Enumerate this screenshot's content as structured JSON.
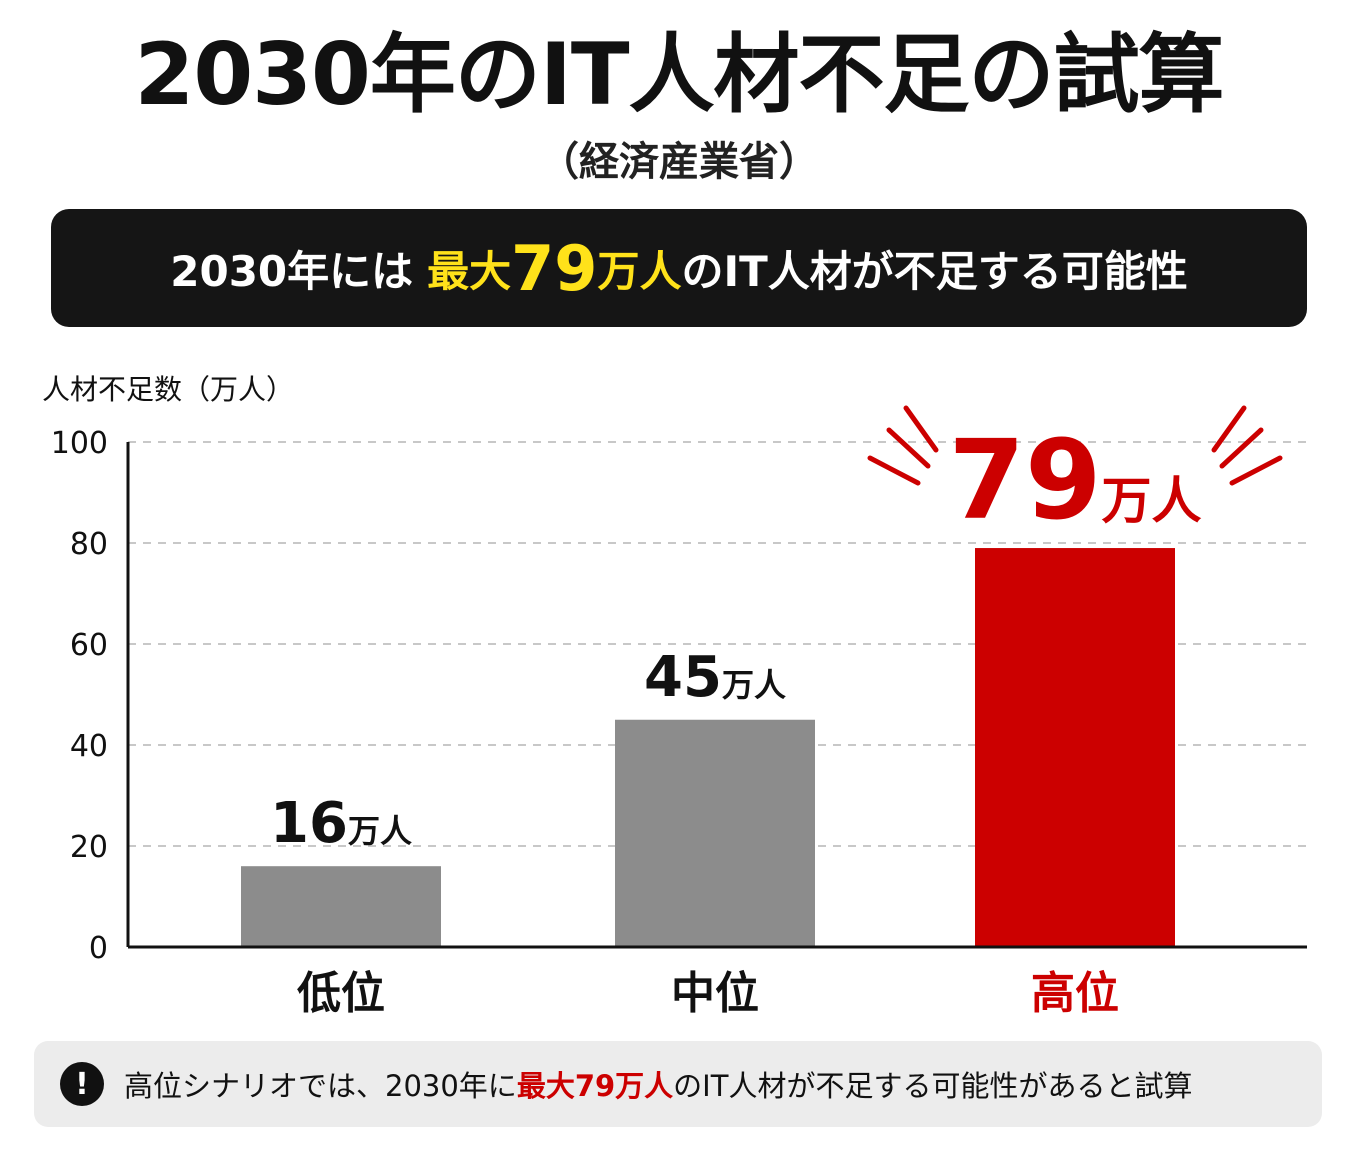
{
  "header": {
    "title": "2030年のIT人材不足の試算",
    "source": "（経済産業省）"
  },
  "banner": {
    "pre": "2030年には",
    "hl_a": "最大",
    "hl_num": "79",
    "hl_b": "万人",
    "post": "のIT人材が不足する可能性"
  },
  "footer": {
    "icon": "exclamation-icon",
    "icon_text": "!",
    "pre": "高位シナリオでは、2030年に",
    "hl": "最大79万人",
    "post": "のIT人材が不足する可能性があると試算"
  },
  "chart_data": {
    "type": "bar",
    "ylabel": "人材不足数（万人）",
    "ylim": [
      0,
      100
    ],
    "yticks": [
      0,
      20,
      40,
      60,
      80,
      100
    ],
    "grid": true,
    "categories": [
      "低位",
      "中位",
      "高位"
    ],
    "values": [
      16,
      45,
      79
    ],
    "value_labels": [
      {
        "num": "16",
        "unit": "万人"
      },
      {
        "num": "45",
        "unit": "万人"
      },
      {
        "num": "79",
        "unit": "万人"
      }
    ],
    "colors": [
      "#8c8c8c",
      "#8c8c8c",
      "#cc0000"
    ],
    "highlight_index": 2,
    "highlight_color": "#cc0000"
  }
}
